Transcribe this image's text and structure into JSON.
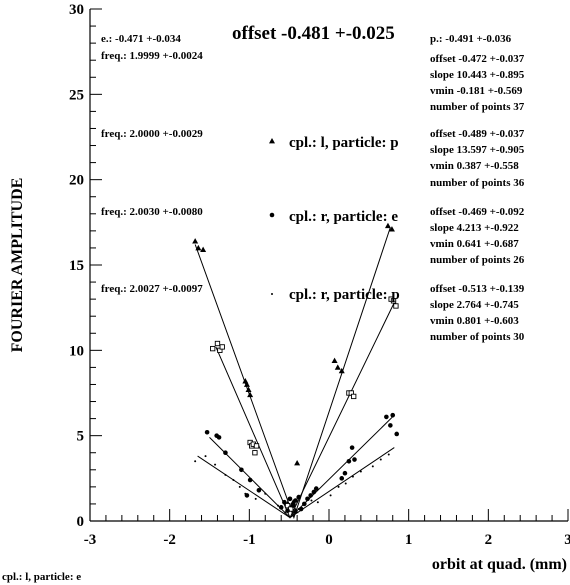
{
  "chart_data": {
    "type": "scatter",
    "title": "offset -0.481 +-0.025",
    "xlabel": "orbit at quad. (mm)",
    "ylabel": "FOURIER AMPLITUDE",
    "footer": "cpl.: l,  particle: e",
    "xlim": [
      -3,
      3
    ],
    "ylim": [
      0,
      30
    ],
    "xticks": [
      "-3",
      "-2",
      "-1",
      "0",
      "1",
      "2",
      "3"
    ],
    "yticks": [
      "0",
      "5",
      "10",
      "15",
      "20",
      "25",
      "30"
    ],
    "legend": [
      {
        "label": "cpl.: l,  particle: p",
        "marker": "triangle"
      },
      {
        "label": "cpl.: r,  particle: e",
        "marker": "dot"
      },
      {
        "label": "cpl.: r,  particle: p",
        "marker": "small-dot"
      }
    ],
    "annotations_left": [
      "e.: -0.471 +-0.034",
      "freq.: 1.9999 +-0.0024",
      "freq.: 2.0000 +-0.0029",
      "freq.: 2.0030 +-0.0080",
      "freq.: 2.0027 +-0.0097"
    ],
    "annotations_right": [
      "p.: -0.491 +-0.036",
      "offset -0.472 +-0.037",
      "slope  10.443 +-0.895",
      "vmin   -0.181 +-0.569",
      "number of points   37",
      "offset -0.489 +-0.037",
      "slope  13.597 +-0.905",
      "vmin   0.387 +-0.558",
      "number of points   36",
      "offset -0.469 +-0.092",
      "slope  4.213 +-0.922",
      "vmin   0.641 +-0.687",
      "number of points   26",
      "offset -0.513 +-0.139",
      "slope  2.764 +-0.745",
      "vmin   0.801 +-0.603",
      "number of points   30"
    ],
    "fit_lines": [
      {
        "x": [
          -1.68,
          -0.44,
          0.77
        ],
        "y": [
          16.2,
          0.2,
          17.2
        ]
      },
      {
        "x": [
          -1.42,
          -0.49,
          0.82
        ],
        "y": [
          10.2,
          0.2,
          12.8
        ]
      },
      {
        "x": [
          -1.5,
          -0.49,
          0.82
        ],
        "y": [
          4.9,
          0.2,
          6.2
        ]
      },
      {
        "x": [
          -1.65,
          -0.49,
          0.82
        ],
        "y": [
          3.8,
          0.2,
          4.3
        ]
      }
    ],
    "series": [
      {
        "marker": "triangle",
        "x": [
          -1.68,
          -1.64,
          -1.58,
          -1.05,
          -1.03,
          -1.01,
          -0.99,
          -0.52,
          -0.48,
          -0.45,
          -0.42,
          -0.4,
          0.07,
          0.11,
          0.16,
          0.74,
          0.79
        ],
        "y": [
          16.4,
          16.0,
          15.9,
          8.2,
          8.0,
          7.7,
          7.4,
          1.0,
          0.8,
          1.1,
          0.6,
          3.4,
          9.4,
          9.0,
          8.8,
          17.3,
          17.1
        ]
      },
      {
        "marker": "square",
        "x": [
          -1.46,
          -1.4,
          -1.37,
          -1.34,
          -0.99,
          -0.97,
          -0.95,
          -0.93,
          -0.91,
          -0.52,
          -0.48,
          0.25,
          0.28,
          0.31,
          0.78,
          0.81,
          0.84
        ],
        "y": [
          10.1,
          10.4,
          10.0,
          10.2,
          4.6,
          4.4,
          4.5,
          4.0,
          4.4,
          0.9,
          0.7,
          7.5,
          7.5,
          7.3,
          13.0,
          12.9,
          12.6
        ]
      },
      {
        "marker": "dot",
        "x": [
          -1.53,
          -1.41,
          -1.38,
          -1.3,
          -1.1,
          -1.03,
          -0.99,
          -0.88,
          -0.6,
          -0.56,
          -0.52,
          -0.49,
          -0.45,
          -0.42,
          -0.38,
          -0.35,
          -0.31,
          -0.27,
          -0.23,
          -0.19,
          -0.16,
          0.16,
          0.2,
          0.25,
          0.29,
          0.32,
          0.72,
          0.77,
          0.8,
          0.85
        ],
        "y": [
          5.2,
          5.0,
          4.9,
          4.0,
          3.0,
          1.5,
          2.4,
          1.8,
          0.8,
          1.1,
          0.6,
          1.3,
          0.9,
          1.2,
          1.4,
          0.7,
          1.0,
          1.3,
          1.5,
          1.7,
          1.9,
          2.5,
          2.8,
          3.5,
          4.3,
          3.6,
          6.1,
          5.6,
          6.2,
          5.1
        ]
      },
      {
        "marker": "small-dot",
        "x": [
          -1.68,
          -1.55,
          -1.43,
          -1.3,
          -1.2,
          -1.12,
          -1.05,
          -0.92,
          -0.8,
          -0.64,
          -0.55,
          -0.45,
          -0.38,
          -0.3,
          -0.22,
          -0.14,
          0.02,
          0.12,
          0.21,
          0.3,
          0.4,
          0.55,
          0.65,
          0.75
        ],
        "y": [
          3.5,
          3.8,
          3.3,
          2.7,
          2.4,
          2.0,
          1.6,
          1.3,
          1.6,
          0.9,
          0.5,
          0.4,
          0.7,
          1.0,
          1.2,
          1.1,
          1.5,
          2.0,
          2.2,
          2.6,
          2.9,
          3.2,
          3.6,
          3.9
        ]
      }
    ]
  }
}
